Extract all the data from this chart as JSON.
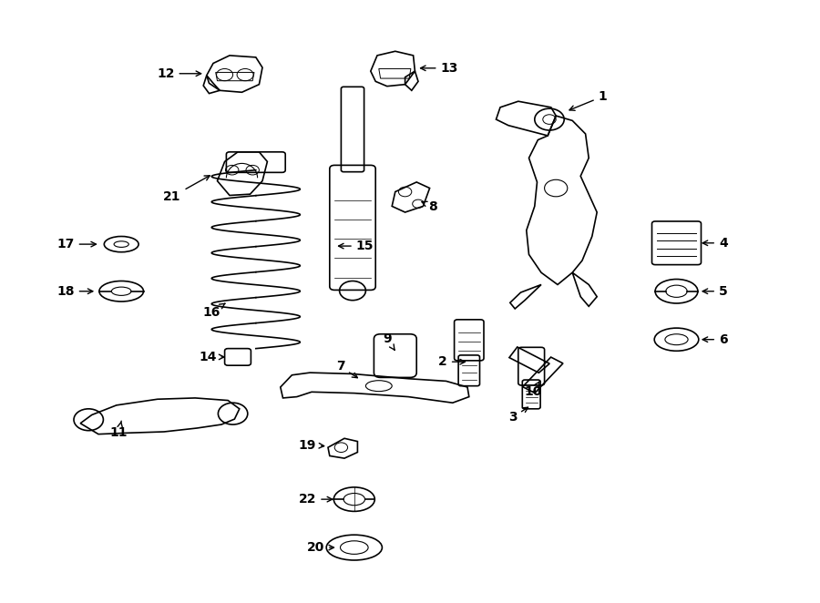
{
  "bg_color": "#ffffff",
  "line_color": "#000000",
  "fig_width": 9.0,
  "fig_height": 6.62,
  "dpi": 100,
  "label_data": [
    [
      1,
      0.735,
      0.84,
      0.69,
      0.815
    ],
    [
      2,
      0.54,
      0.4,
      0.572,
      0.4
    ],
    [
      3,
      0.625,
      0.308,
      0.648,
      0.328
    ],
    [
      4,
      0.882,
      0.597,
      0.852,
      0.597
    ],
    [
      5,
      0.882,
      0.517,
      0.852,
      0.517
    ],
    [
      6,
      0.882,
      0.437,
      0.852,
      0.437
    ],
    [
      7,
      0.415,
      0.392,
      0.44,
      0.37
    ],
    [
      8,
      0.528,
      0.657,
      0.51,
      0.668
    ],
    [
      9,
      0.472,
      0.438,
      0.482,
      0.418
    ],
    [
      10,
      0.65,
      0.35,
      0.66,
      0.372
    ],
    [
      11,
      0.145,
      0.283,
      0.148,
      0.302
    ],
    [
      12,
      0.202,
      0.878,
      0.25,
      0.878
    ],
    [
      13,
      0.548,
      0.887,
      0.508,
      0.887
    ],
    [
      14,
      0.253,
      0.408,
      0.278,
      0.408
    ],
    [
      15,
      0.445,
      0.592,
      0.408,
      0.592
    ],
    [
      16,
      0.258,
      0.482,
      0.278,
      0.5
    ],
    [
      17,
      0.08,
      0.595,
      0.122,
      0.595
    ],
    [
      18,
      0.08,
      0.517,
      0.118,
      0.517
    ],
    [
      19,
      0.375,
      0.262,
      0.4,
      0.26
    ],
    [
      20,
      0.385,
      0.092,
      0.412,
      0.092
    ],
    [
      21,
      0.21,
      0.674,
      0.26,
      0.712
    ],
    [
      22,
      0.375,
      0.172,
      0.41,
      0.172
    ]
  ]
}
